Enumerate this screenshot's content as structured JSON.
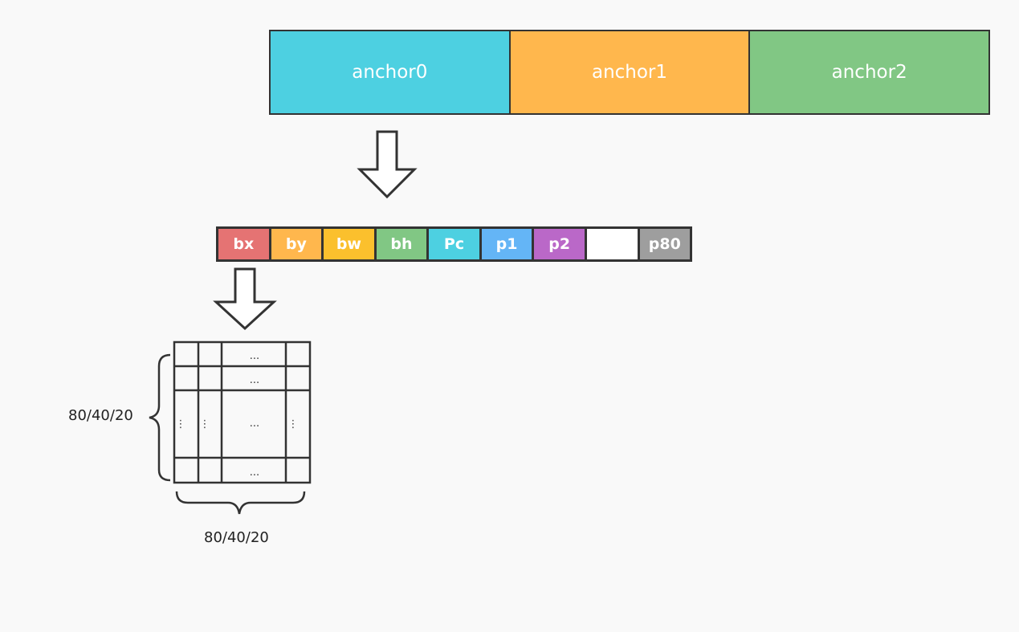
{
  "anchors": [
    {
      "label": "anchor0",
      "color": "#4dd0e1"
    },
    {
      "label": "anchor1",
      "color": "#ffb74d"
    },
    {
      "label": "anchor2",
      "color": "#81c784"
    }
  ],
  "vector": [
    {
      "label": "bx",
      "color": "#e57373"
    },
    {
      "label": "by",
      "color": "#ffb74d"
    },
    {
      "label": "bw",
      "color": "#fbc02d"
    },
    {
      "label": "bh",
      "color": "#81c784"
    },
    {
      "label": "Pc",
      "color": "#4dd0e1"
    },
    {
      "label": "p1",
      "color": "#64b5f6"
    },
    {
      "label": "p2",
      "color": "#ba68c8"
    },
    {
      "label": "",
      "color": "#ffffff"
    },
    {
      "label": "p80",
      "color": "#9e9e9e"
    }
  ],
  "grid": {
    "ellipsis": "...",
    "vdots": "⋮"
  },
  "dims": {
    "rows_label": "80/40/20",
    "cols_label": "80/40/20"
  }
}
